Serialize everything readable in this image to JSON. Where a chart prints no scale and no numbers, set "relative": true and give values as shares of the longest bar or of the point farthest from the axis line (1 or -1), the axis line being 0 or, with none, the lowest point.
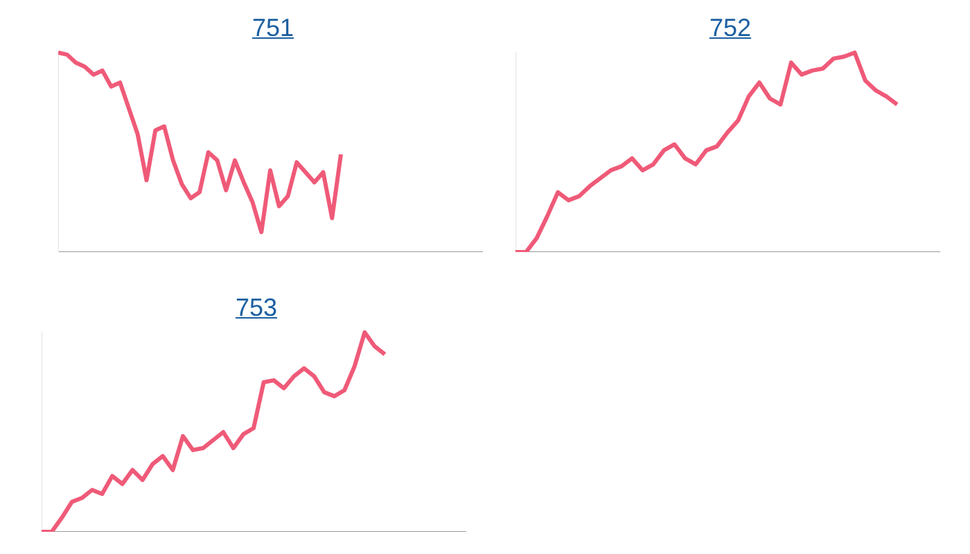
{
  "chart_data": [
    {
      "type": "line",
      "title": "751",
      "relative": true,
      "marker": "none",
      "legend": false,
      "tick_labels": false,
      "categories": [
        null,
        null,
        null,
        null,
        null,
        null,
        null,
        null,
        null,
        null,
        null,
        null,
        null,
        null,
        null,
        null,
        null,
        null,
        null,
        null,
        null,
        null,
        null,
        null,
        null,
        null,
        null,
        null,
        null,
        null,
        null,
        null,
        null,
        null,
        null,
        null,
        null,
        null,
        null,
        null,
        null,
        null,
        null,
        null,
        null,
        null,
        null,
        null,
        null
      ],
      "series": [
        {
          "color": "#ef5a78",
          "values": [
            1,
            0.99,
            0.95,
            0.93,
            0.89,
            0.91,
            0.83,
            0.85,
            0.72,
            0.59,
            0.36,
            0.61,
            0.63,
            0.46,
            0.34,
            0.27,
            0.3,
            0.5,
            0.46,
            0.31,
            0.46,
            0.35,
            0.25,
            0.1,
            0.41,
            0.23,
            0.28,
            0.45,
            0.4,
            0.35,
            0.4,
            0.17,
            0.49,
            null,
            null,
            null,
            null,
            null,
            null,
            null,
            null,
            null,
            null,
            null,
            null,
            null,
            null,
            null,
            null
          ]
        }
      ]
    },
    {
      "type": "line",
      "title": "752",
      "relative": true,
      "marker": "none",
      "legend": false,
      "tick_labels": false,
      "categories": [
        null,
        null,
        null,
        null,
        null,
        null,
        null,
        null,
        null,
        null,
        null,
        null,
        null,
        null,
        null,
        null,
        null,
        null,
        null,
        null,
        null,
        null,
        null,
        null,
        null,
        null,
        null,
        null,
        null,
        null,
        null,
        null,
        null,
        null,
        null,
        null,
        null,
        null,
        null,
        null,
        null
      ],
      "series": [
        {
          "color": "#ef5a78",
          "values": [
            0,
            0,
            0.07,
            0.18,
            0.3,
            0.26,
            0.28,
            0.33,
            0.37,
            0.41,
            0.43,
            0.47,
            0.41,
            0.44,
            0.51,
            0.54,
            0.47,
            0.44,
            0.51,
            0.53,
            0.6,
            0.66,
            0.78,
            0.85,
            0.77,
            0.74,
            0.95,
            0.89,
            0.91,
            0.92,
            0.97,
            0.98,
            1,
            0.86,
            0.81,
            0.78,
            0.74,
            null,
            null,
            null,
            null
          ]
        }
      ]
    },
    {
      "type": "line",
      "title": "753",
      "relative": true,
      "marker": "none",
      "legend": false,
      "tick_labels": false,
      "categories": [
        null,
        null,
        null,
        null,
        null,
        null,
        null,
        null,
        null,
        null,
        null,
        null,
        null,
        null,
        null,
        null,
        null,
        null,
        null,
        null,
        null,
        null,
        null,
        null,
        null,
        null,
        null,
        null,
        null,
        null,
        null,
        null,
        null,
        null,
        null,
        null,
        null,
        null,
        null,
        null,
        null,
        null,
        null
      ],
      "series": [
        {
          "color": "#ef5a78",
          "values": [
            0,
            0,
            0.07,
            0.15,
            0.17,
            0.21,
            0.19,
            0.28,
            0.24,
            0.31,
            0.26,
            0.34,
            0.38,
            0.31,
            0.48,
            0.41,
            0.42,
            0.46,
            0.5,
            0.42,
            0.49,
            0.52,
            0.75,
            0.76,
            0.72,
            0.78,
            0.82,
            0.78,
            0.7,
            0.68,
            0.71,
            0.83,
            1,
            0.93,
            0.89,
            null,
            null,
            null,
            null,
            null,
            null,
            null,
            null
          ]
        }
      ]
    }
  ]
}
